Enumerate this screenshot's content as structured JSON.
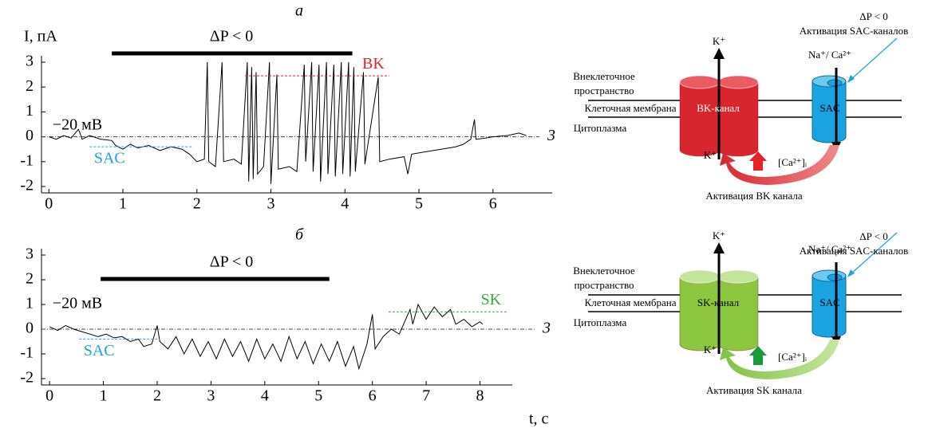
{
  "chart_data": [
    {
      "type": "line",
      "panel_label": "а",
      "y_label": "I, пА",
      "xlim": [
        -0.1,
        6.8
      ],
      "ylim": [
        -2,
        3
      ],
      "xticks": [
        0,
        1,
        2,
        3,
        4,
        5,
        6
      ],
      "yticks": [
        -2,
        -1,
        0,
        1,
        2,
        3
      ],
      "stimulus": {
        "label": "ΔP < 0",
        "x": [
          0.85,
          4.1
        ]
      },
      "voltage_label": "−20 мВ",
      "reference_label": "3",
      "reference_value": 0,
      "levels": [
        {
          "label": "SAC",
          "value": -0.4,
          "x": [
            0.55,
            1.95
          ],
          "color": "#1aa3e0"
        },
        {
          "label": "BK",
          "value": 2.45,
          "x": [
            2.65,
            4.6
          ],
          "color": "#d7262e"
        }
      ],
      "series": [
        {
          "color": "#000000",
          "x": [
            0,
            0.1,
            0.2,
            0.3,
            0.4,
            0.45,
            0.55,
            0.7,
            0.85,
            0.9,
            1.0,
            1.1,
            1.2,
            1.35,
            1.5,
            1.65,
            1.8,
            1.9,
            2.0,
            2.1,
            2.14,
            2.16,
            2.25,
            2.34,
            2.36,
            2.5,
            2.6,
            2.68,
            2.7,
            2.74,
            2.76,
            2.8,
            2.82,
            2.9,
            2.98,
            3.0,
            3.08,
            3.1,
            3.25,
            3.35,
            3.45,
            3.47,
            3.55,
            3.57,
            3.65,
            3.67,
            3.75,
            3.77,
            3.85,
            3.87,
            3.95,
            3.97,
            4.05,
            4.07,
            4.12,
            4.14,
            4.25,
            4.27,
            4.45,
            4.47,
            4.6,
            4.8,
            4.85,
            4.9,
            5.1,
            5.3,
            5.5,
            5.6,
            5.7,
            5.75,
            5.77,
            5.9,
            6.0,
            6.2,
            6.35,
            6.45
          ],
          "values": [
            0,
            -0.1,
            0.05,
            -0.05,
            0.3,
            -0.1,
            0.05,
            -0.1,
            -0.15,
            -0.35,
            -0.5,
            -0.3,
            -0.45,
            -0.35,
            -0.55,
            -0.4,
            -0.5,
            -0.7,
            -1.0,
            -0.9,
            3.0,
            -1.0,
            -1.2,
            3.0,
            -1.0,
            -0.9,
            -1.1,
            3.0,
            -1.8,
            2.8,
            -1.7,
            2.6,
            -1.5,
            -1.2,
            3.0,
            -1.9,
            2.5,
            -1.3,
            -1.2,
            -1.4,
            2.9,
            -1.0,
            3.0,
            -1.4,
            2.9,
            -1.8,
            3.0,
            -1.5,
            2.9,
            -1.6,
            3.0,
            -1.5,
            3.0,
            -1.6,
            2.8,
            -1.4,
            2.6,
            -1.1,
            2.4,
            -1.0,
            -0.9,
            -0.8,
            -1.5,
            -0.7,
            -0.6,
            -0.5,
            -0.4,
            -0.3,
            -0.1,
            0.7,
            -0.1,
            -0.05,
            0.0,
            0.05,
            0.15,
            0.05
          ]
        }
      ]
    },
    {
      "type": "line",
      "panel_label": "б",
      "x_label": "t, с",
      "xlim": [
        -0.15,
        8.6
      ],
      "ylim": [
        -2,
        3
      ],
      "xticks": [
        0,
        1,
        2,
        3,
        4,
        5,
        6,
        7,
        8
      ],
      "yticks": [
        -2,
        -1,
        0,
        1,
        2,
        3
      ],
      "stimulus": {
        "label": "ΔP < 0",
        "x": [
          0.95,
          5.2
        ]
      },
      "voltage_label": "−20 мВ",
      "reference_label": "3",
      "reference_value": 0,
      "levels": [
        {
          "label": "SAC",
          "value": -0.4,
          "x": [
            0.55,
            2.0
          ],
          "color": "#1aa3e0"
        },
        {
          "label": "SK",
          "value": 0.7,
          "x": [
            6.3,
            8.5
          ],
          "color": "#3aa935"
        }
      ],
      "series": [
        {
          "color": "#000000",
          "x": [
            0,
            0.15,
            0.3,
            0.45,
            0.6,
            0.75,
            0.9,
            1.05,
            1.2,
            1.35,
            1.5,
            1.65,
            1.75,
            1.9,
            2.0,
            2.05,
            2.2,
            2.35,
            2.5,
            2.65,
            2.8,
            2.95,
            3.1,
            3.25,
            3.4,
            3.55,
            3.7,
            3.85,
            4.0,
            4.15,
            4.3,
            4.45,
            4.6,
            4.75,
            4.9,
            5.05,
            5.2,
            5.35,
            5.5,
            5.65,
            5.75,
            5.9,
            6.0,
            6.05,
            6.2,
            6.35,
            6.5,
            6.6,
            6.7,
            6.75,
            6.85,
            7.0,
            7.15,
            7.3,
            7.45,
            7.55,
            7.7,
            7.85,
            8.0,
            8.05
          ],
          "values": [
            0.1,
            -0.05,
            0.15,
            0,
            -0.1,
            -0.2,
            -0.3,
            -0.2,
            -0.35,
            -0.3,
            -0.5,
            -0.4,
            -0.7,
            -0.6,
            0.15,
            -0.5,
            -0.8,
            -0.3,
            -1.0,
            -0.4,
            -1.1,
            -0.5,
            -1.2,
            -0.4,
            -1.1,
            -0.5,
            -1.3,
            -0.4,
            -1.2,
            -0.6,
            -1.3,
            -0.3,
            -1.2,
            -0.5,
            -1.4,
            -0.6,
            -1.3,
            -0.5,
            -1.5,
            -0.7,
            -1.6,
            -0.6,
            0.6,
            -0.8,
            -0.3,
            0,
            -0.2,
            0.3,
            0.8,
            0.2,
            1.0,
            0.4,
            0.9,
            0.5,
            0.8,
            0.2,
            0.4,
            0.1,
            0.3,
            0.2
          ]
        }
      ]
    }
  ],
  "diagrams": [
    {
      "delta_p": "ΔP < 0",
      "activation_sac": "Активация SAC-каналов",
      "k_out": "K⁺",
      "ions": "Na⁺/ Ca²⁺",
      "extracellular": [
        "Внеклеточное",
        "пространство"
      ],
      "membrane": "Клеточная мембрана",
      "cytoplasm": "Цитоплазма",
      "channel": "BK-канал",
      "sac": "SAC",
      "k_in": "K⁺",
      "calcium": "[Ca²⁺]ᵢ",
      "activation": "Активация BK канала"
    },
    {
      "delta_p": "ΔP < 0",
      "activation_sac": "Активация SAC-каналов",
      "k_out": "K⁺",
      "ions": "Na⁺/ Ca²⁺",
      "extracellular": [
        "Внеклеточное",
        "пространство"
      ],
      "membrane": "Клеточная мембрана",
      "cytoplasm": "Цитоплазма",
      "channel": "SK-канал",
      "sac": "SAC",
      "k_in": "K⁺",
      "calcium": "[Ca²⁺]ᵢ",
      "activation": "Активация SK канала"
    }
  ]
}
